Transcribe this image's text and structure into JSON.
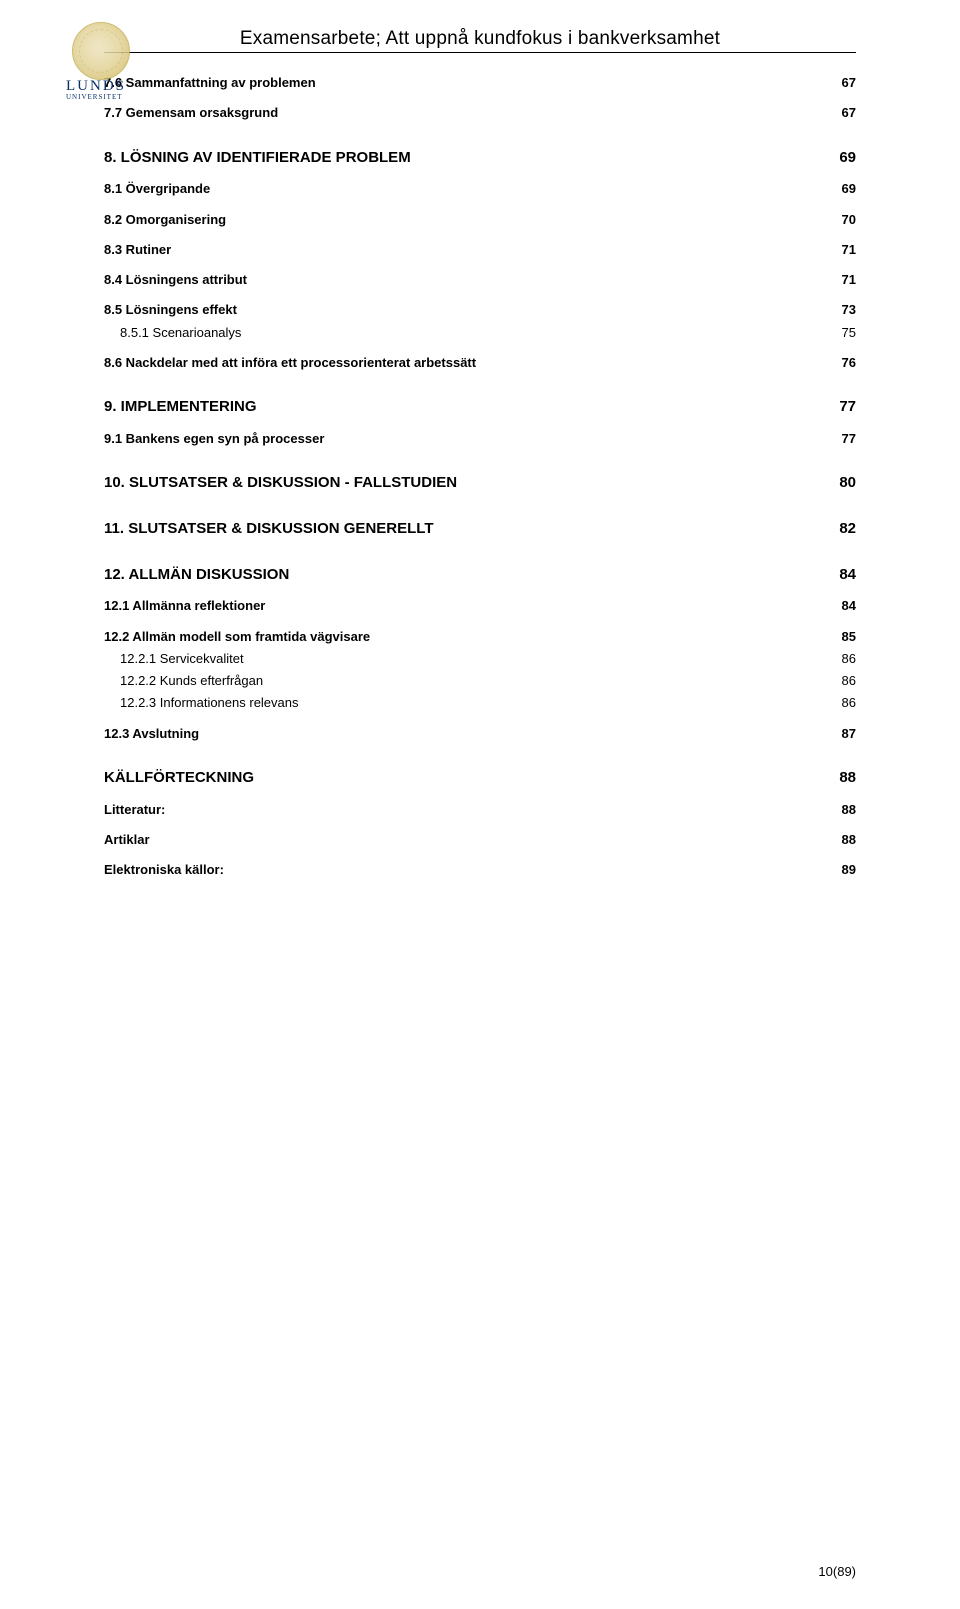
{
  "header": {
    "title": "Examensarbete; Att uppnå kundfokus i bankverksamhet",
    "logo_main": "LUNDS",
    "logo_sub": "UNIVERSITET"
  },
  "toc": {
    "items": [
      {
        "level": 2,
        "label": "7.6 Sammanfattning av problemen",
        "page": "67"
      },
      {
        "level": 2,
        "label": "7.7 Gemensam orsaksgrund",
        "page": "67"
      },
      {
        "level": 1,
        "label": "8. LÖSNING AV IDENTIFIERADE PROBLEM",
        "page": "69"
      },
      {
        "level": 2,
        "label": "8.1 Övergripande",
        "page": "69"
      },
      {
        "level": 2,
        "label": "8.2 Omorganisering",
        "page": "70"
      },
      {
        "level": 2,
        "label": "8.3 Rutiner",
        "page": "71"
      },
      {
        "level": 2,
        "label": "8.4 Lösningens attribut",
        "page": "71"
      },
      {
        "level": 2,
        "label": "8.5 Lösningens effekt",
        "page": "73"
      },
      {
        "level": 3,
        "label": "8.5.1 Scenarioanalys",
        "page": "75"
      },
      {
        "level": 2,
        "label": "8.6 Nackdelar med att införa ett processorienterat arbetssätt",
        "page": "76"
      },
      {
        "level": 1,
        "label": "9. IMPLEMENTERING",
        "page": "77"
      },
      {
        "level": 2,
        "label": "9.1 Bankens egen syn på processer",
        "page": "77"
      },
      {
        "level": 1,
        "label": "10. SLUTSATSER & DISKUSSION - FALLSTUDIEN",
        "page": "80"
      },
      {
        "level": 1,
        "label": "11.    SLUTSATSER & DISKUSSION GENERELLT",
        "page": "82"
      },
      {
        "level": 1,
        "label": "12. ALLMÄN DISKUSSION",
        "page": "84"
      },
      {
        "level": 2,
        "label": "12.1 Allmänna reflektioner",
        "page": "84"
      },
      {
        "level": 2,
        "label": "12.2 Allmän modell som framtida vägvisare",
        "page": "85"
      },
      {
        "level": 3,
        "label": "12.2.1 Servicekvalitet",
        "page": "86"
      },
      {
        "level": 3,
        "label": "12.2.2 Kunds efterfrågan",
        "page": "86"
      },
      {
        "level": 3,
        "label": "12.2.3 Informationens relevans",
        "page": "86"
      },
      {
        "level": 2,
        "label": "12.3 Avslutning",
        "page": "87"
      },
      {
        "level": 1,
        "label": "KÄLLFÖRTECKNING",
        "page": "88"
      },
      {
        "level": 2,
        "label": "Litteratur:",
        "page": "88"
      },
      {
        "level": 2,
        "label": "Artiklar",
        "page": "88"
      },
      {
        "level": 2,
        "label": "Elektroniska källor:",
        "page": "89"
      }
    ]
  },
  "footer": {
    "page_label": "10(89)"
  }
}
